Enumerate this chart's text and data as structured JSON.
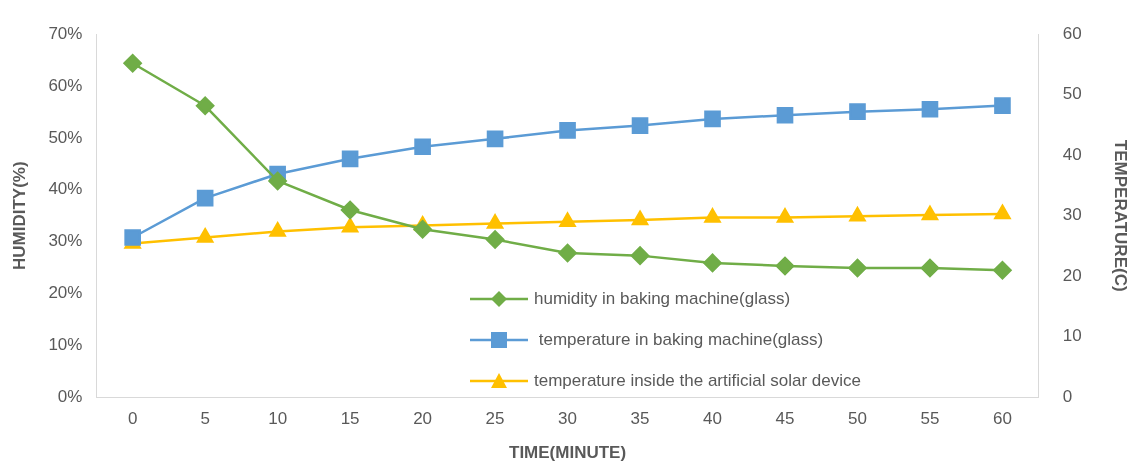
{
  "chart_data": {
    "type": "line",
    "xlabel": "TIME(MINUTE)",
    "ylabel": "HUMIDITY(%)",
    "y2label": "TEMPERATURE(C)",
    "categories": [
      "0",
      "5",
      "10",
      "15",
      "20",
      "25",
      "30",
      "35",
      "40",
      "45",
      "50",
      "55",
      "60"
    ],
    "series": [
      {
        "name": "humidity in baking machine(glass)",
        "color": "#70ad47",
        "marker": "diamond",
        "values": [
          64.4,
          56.2,
          41.7,
          36.1,
          32.4,
          30.4,
          27.8,
          27.3,
          25.9,
          25.3,
          24.9,
          24.9,
          24.5
        ]
      },
      {
        "name": " temperature in baking machine(glass)",
        "color": "#5b9bd5",
        "marker": "square",
        "axis": "y2",
        "values": [
          26.4,
          32.9,
          36.9,
          39.4,
          41.4,
          42.7,
          44.1,
          44.9,
          46.0,
          46.6,
          47.2,
          47.6,
          48.2
        ]
      },
      {
        "name": "temperature inside the artificial solar device",
        "color": "#ffc000",
        "marker": "triangle",
        "axis": "y2",
        "values": [
          25.4,
          26.4,
          27.4,
          28.1,
          28.4,
          28.7,
          29.0,
          29.3,
          29.7,
          29.7,
          29.9,
          30.1,
          30.3
        ]
      }
    ],
    "ylim": [
      0,
      70
    ],
    "yticks": [
      {
        "value": 0,
        "label": "0%"
      },
      {
        "value": 10,
        "label": "10%"
      },
      {
        "value": 20,
        "label": "20%"
      },
      {
        "value": 30,
        "label": "30%"
      },
      {
        "value": 40,
        "label": "40%"
      },
      {
        "value": 50,
        "label": "50%"
      },
      {
        "value": 60,
        "label": "60%"
      },
      {
        "value": 70,
        "label": "70%"
      }
    ],
    "y2lim": [
      0,
      60
    ],
    "y2ticks": [
      0,
      10,
      20,
      30,
      40,
      50,
      60
    ],
    "grid": false,
    "legend": "bottom"
  }
}
